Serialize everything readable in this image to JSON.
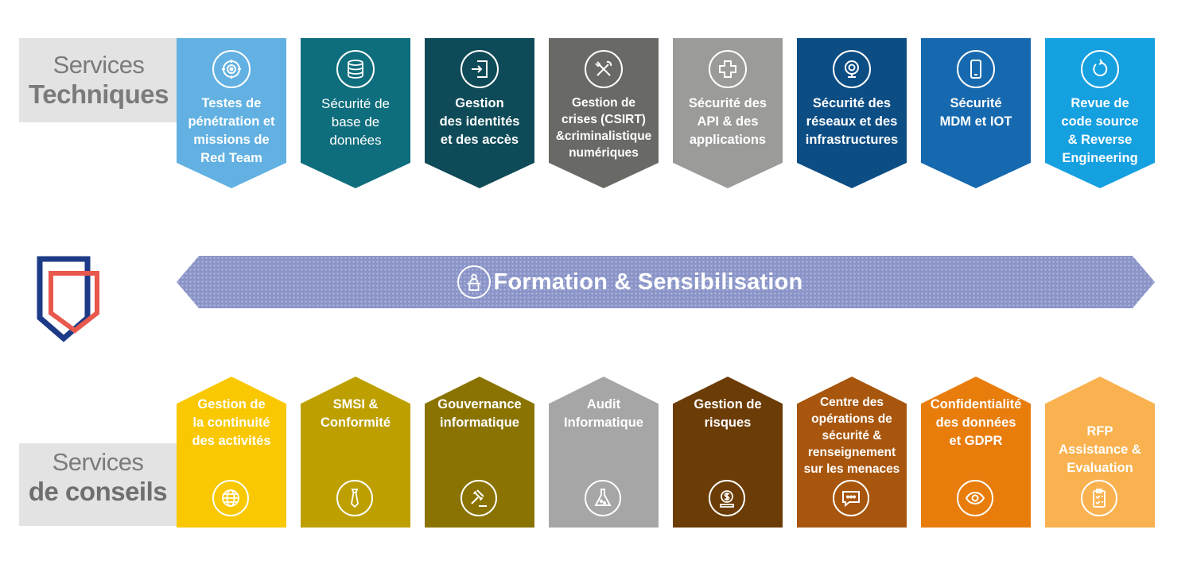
{
  "sections": {
    "technical": {
      "line1": "Services",
      "line2": "Techniques"
    },
    "consulting": {
      "line1": "Services",
      "line2": "de conseils"
    }
  },
  "technical_cards": [
    {
      "label": "Testes de\npénétration et\nmissions de\nRed Team",
      "icon": "target-icon",
      "color": "#62b1e2"
    },
    {
      "label": "Sécurité de\nbase de\ndonnées",
      "icon": "database-icon",
      "color": "#0f6e7d"
    },
    {
      "label": "Gestion\ndes identités\net des accès",
      "icon": "login-icon",
      "color": "#0e4a57"
    },
    {
      "label": "Gestion de\ncrises  (CSIRT)\n&criminalistique\nnumériques",
      "icon": "tools-icon",
      "color": "#696966"
    },
    {
      "label": "Sécurité des\nAPI & des\napplications",
      "icon": "medical-cross-icon",
      "color": "#9b9b99"
    },
    {
      "label": "Sécurité des\nréseaux et des\ninfrastructures",
      "icon": "webcam-icon",
      "color": "#0c4d84"
    },
    {
      "label": "Sécurité\nMDM et IOT",
      "icon": "smartphone-icon",
      "color": "#1669af"
    },
    {
      "label": "Revue de\ncode source\n& Reverse\nEngineering",
      "icon": "refresh-icon",
      "color": "#15a0e0"
    }
  ],
  "formation": {
    "label": "Formation & Sensibilisation",
    "icon": "presenter-icon",
    "color": "#8a94c8"
  },
  "consulting_cards": [
    {
      "label": "Gestion de\nla continuité\ndes activités",
      "icon": "globe-icon",
      "color": "#f9c800"
    },
    {
      "label": "SMSI &\nConformité",
      "icon": "tie-icon",
      "color": "#bda000"
    },
    {
      "label": "Gouvernance\ninformatique",
      "icon": "gavel-icon",
      "color": "#8a7300"
    },
    {
      "label": "Audit\nInformatique",
      "icon": "flask-icon",
      "color": "#a6a6a6"
    },
    {
      "label": "Gestion de\nrisques",
      "icon": "money-icon",
      "color": "#6b3c05"
    },
    {
      "label": "Centre des\nopérations de\nsécurité &\nrenseignement\nsur les menaces",
      "icon": "chat-icon",
      "color": "#a8560d"
    },
    {
      "label": "Confidentialité\ndes données\net GDPR",
      "icon": "eye-icon",
      "color": "#e87d0c"
    },
    {
      "label": "RFP\nAssistance &\nEvaluation",
      "icon": "clipboard-icon",
      "color": "#f9b24f"
    }
  ],
  "logo": {
    "icon": "shield-logo-icon",
    "outer_color": "#1d3a87",
    "inner_color": "#e8584c"
  }
}
